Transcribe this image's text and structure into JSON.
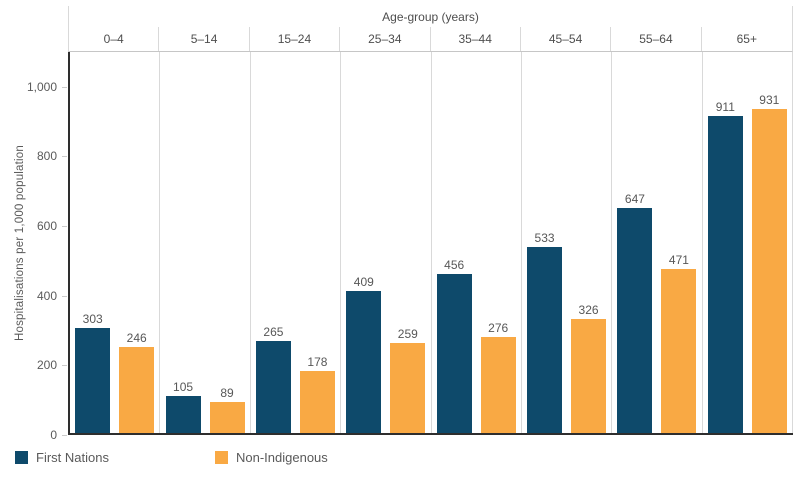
{
  "chart": {
    "y_axis_title": "Hospitalisations per 1,000 population",
    "x_axis_title": "Age-group (years)",
    "colors": {
      "first_nations": "#0E4A6B",
      "non_indigenous": "#F9A944",
      "axis_line": "#2E2E2E",
      "divider_line": "#D9D9D9",
      "text": "#5A5A5A"
    }
  },
  "legend": {
    "items": [
      {
        "label": "First Nations",
        "color": "#0E4A6B"
      },
      {
        "label": "Non-Indigenous",
        "color": "#F9A944"
      }
    ]
  },
  "chart_data": {
    "type": "bar",
    "title": "",
    "xlabel": "Age-group (years)",
    "ylabel": "Hospitalisations per 1,000 population",
    "categories": [
      "0–4",
      "5–14",
      "15–24",
      "25–34",
      "35–44",
      "45–54",
      "55–64",
      "65+"
    ],
    "series": [
      {
        "name": "First Nations",
        "color": "#0E4A6B",
        "values": [
          303,
          105,
          265,
          409,
          456,
          533,
          647,
          911
        ]
      },
      {
        "name": "Non-Indigenous",
        "color": "#F9A944",
        "values": [
          246,
          89,
          178,
          259,
          276,
          326,
          471,
          931
        ]
      }
    ],
    "ylim": [
      0,
      1100
    ],
    "yticks": [
      0,
      200,
      400,
      600,
      800,
      1000
    ],
    "ytick_labels": [
      "0",
      "200",
      "400",
      "600",
      "800",
      "1,000"
    ],
    "grid": false,
    "value_labels": true,
    "legend_position": "bottom-left"
  }
}
